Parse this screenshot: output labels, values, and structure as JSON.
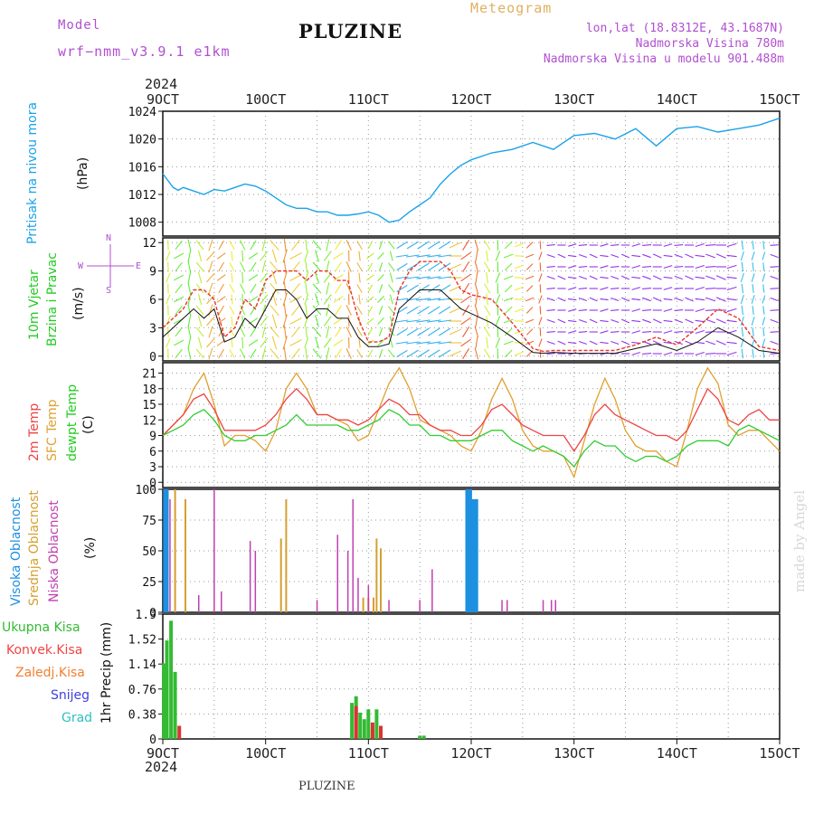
{
  "header": {
    "model_label": "Model",
    "model_name": "wrf−nmm_v3.9.1  e1km",
    "title": "PLUZINE",
    "subtitle": "Meteogram",
    "lonlat": "lon,lat (18.8312E, 43.1687N)",
    "elevation": "Nadmorska Visina 780m",
    "model_elevation": "Nadmorska Visina u modelu 901.488m",
    "year_top": "2024",
    "year_bottom": "2024",
    "footer": "PLUZINE",
    "credit": "made by Angel"
  },
  "colors": {
    "pressure": "#1aa3e8",
    "temp2m": "#ee4444",
    "sfc": "#e0a030",
    "dew": "#33cc33",
    "high_cloud": "#1e90e0",
    "mid_cloud": "#d4a030",
    "low_cloud": "#c040b0",
    "wind_line": "#e8352a",
    "precip_total": "#33bb33",
    "precip_conv": "#dd3333",
    "label_model": "#b050d0",
    "label_meteogram": "#e0b060"
  },
  "time_axis": {
    "labels": [
      "9OCT",
      "10OCT",
      "11OCT",
      "12OCT",
      "13OCT",
      "14OCT",
      "15OCT"
    ],
    "days": [
      0,
      1,
      2,
      3,
      4,
      5,
      6
    ]
  },
  "chart_data": [
    {
      "type": "line",
      "name": "pressure",
      "ylabel": "Pritisak na nivou mora",
      "unit": "(hPa)",
      "ylim": [
        1006,
        1024
      ],
      "yticks": [
        1008,
        1012,
        1016,
        1020,
        1024
      ],
      "x": [
        0,
        0.1,
        0.15,
        0.2,
        0.3,
        0.4,
        0.5,
        0.6,
        0.7,
        0.8,
        0.9,
        1.0,
        1.1,
        1.2,
        1.3,
        1.4,
        1.5,
        1.6,
        1.7,
        1.8,
        1.9,
        2.0,
        2.1,
        2.2,
        2.3,
        2.4,
        2.5,
        2.6,
        2.7,
        2.8,
        2.9,
        3.0,
        3.2,
        3.4,
        3.6,
        3.8,
        4.0,
        4.2,
        4.4,
        4.6,
        4.8,
        5.0,
        5.2,
        5.4,
        5.6,
        5.8,
        6.0
      ],
      "values": [
        1015,
        1013,
        1012.6,
        1013,
        1012.5,
        1012,
        1012.7,
        1012.5,
        1013,
        1013.5,
        1013.2,
        1012.5,
        1011.5,
        1010.5,
        1010,
        1010,
        1009.5,
        1009.5,
        1009,
        1009,
        1009.2,
        1009.5,
        1009,
        1008,
        1008.3,
        1009.5,
        1010.5,
        1011.5,
        1013.5,
        1015,
        1016.2,
        1017,
        1018,
        1018.5,
        1019.5,
        1018.5,
        1020.5,
        1020.8,
        1020,
        1021.5,
        1019,
        1021.5,
        1021.8,
        1021,
        1021.5,
        1022,
        1023
      ]
    },
    {
      "type": "line",
      "name": "wind",
      "ylabel": "10m Vjetar",
      "ylabel2": "Brzina i Pravac",
      "unit": "(m/s)",
      "compass": [
        "N",
        "W",
        "E",
        "S"
      ],
      "ylim": [
        -0.5,
        12.5
      ],
      "yticks": [
        0,
        3,
        6,
        9,
        12
      ],
      "x": [
        0,
        0.1,
        0.2,
        0.3,
        0.4,
        0.5,
        0.6,
        0.7,
        0.8,
        0.9,
        1.0,
        1.1,
        1.2,
        1.3,
        1.4,
        1.5,
        1.6,
        1.7,
        1.8,
        1.9,
        2.0,
        2.1,
        2.2,
        2.3,
        2.4,
        2.5,
        2.6,
        2.7,
        2.8,
        2.9,
        3.0,
        3.2,
        3.4,
        3.6,
        3.7,
        3.8,
        4.0,
        4.2,
        4.4,
        4.6,
        4.8,
        5.0,
        5.2,
        5.4,
        5.6,
        5.8,
        6.0
      ],
      "gust": [
        3,
        4,
        5,
        7,
        7,
        6,
        2,
        3,
        6,
        5,
        8,
        9,
        9,
        9,
        8,
        9,
        9,
        8,
        8,
        4,
        1.5,
        1.5,
        2,
        7,
        9,
        10,
        10,
        10,
        9,
        7,
        6.5,
        6,
        3.5,
        0.8,
        0.5,
        0.6,
        0.6,
        0.6,
        0.6,
        1.2,
        2,
        1.2,
        3,
        5,
        4,
        1,
        0.6
      ],
      "speed": [
        2,
        3,
        4,
        5,
        4,
        5,
        1.5,
        2,
        4,
        3,
        5,
        7,
        7,
        6,
        4,
        5,
        5,
        4,
        4,
        2,
        1,
        1,
        1.3,
        5,
        6,
        7,
        7,
        7,
        6,
        5,
        4.5,
        3.5,
        2,
        0.4,
        0.3,
        0.4,
        0.3,
        0.3,
        0.3,
        0.8,
        1.3,
        0.6,
        1.5,
        3,
        2,
        0.6,
        0.3
      ]
    },
    {
      "type": "line",
      "name": "temperature",
      "ylabel": "2m Temp",
      "ylabel2": "SFC Temp",
      "ylabel3": "dewpt Temp",
      "unit": "(C)",
      "ylim": [
        -1,
        23
      ],
      "yticks": [
        0,
        3,
        6,
        9,
        12,
        15,
        18,
        21
      ],
      "x": [
        0,
        0.1,
        0.2,
        0.3,
        0.4,
        0.5,
        0.6,
        0.7,
        0.8,
        0.9,
        1.0,
        1.1,
        1.2,
        1.3,
        1.4,
        1.5,
        1.6,
        1.7,
        1.8,
        1.9,
        2.0,
        2.1,
        2.2,
        2.3,
        2.4,
        2.5,
        2.6,
        2.7,
        2.8,
        2.9,
        3.0,
        3.1,
        3.2,
        3.3,
        3.4,
        3.5,
        3.6,
        3.7,
        3.8,
        3.9,
        4.0,
        4.1,
        4.2,
        4.3,
        4.4,
        4.5,
        4.6,
        4.7,
        4.8,
        4.9,
        5.0,
        5.1,
        5.2,
        5.3,
        5.4,
        5.5,
        5.6,
        5.7,
        5.8,
        5.9,
        6.0
      ],
      "t2m": [
        9,
        11,
        13,
        16,
        17,
        14,
        10,
        10,
        10,
        10,
        11,
        13,
        16,
        18,
        16,
        13,
        13,
        12,
        12,
        11,
        12,
        14,
        16,
        15,
        13,
        13,
        11,
        10,
        10,
        9,
        9,
        11,
        14,
        15,
        13,
        11,
        10,
        9,
        9,
        9,
        6,
        9,
        13,
        15,
        13,
        12,
        11,
        10,
        9,
        9,
        8,
        10,
        14,
        18,
        16,
        12,
        11,
        13,
        14,
        12,
        12
      ],
      "sfc": [
        9,
        11,
        13,
        18,
        21,
        15,
        7,
        9,
        9,
        8,
        6,
        10,
        18,
        21,
        18,
        13,
        13,
        12,
        11,
        8,
        9,
        14,
        19,
        22,
        18,
        12,
        11,
        10,
        9,
        7,
        6,
        10,
        16,
        20,
        16,
        10,
        7,
        6,
        6,
        5,
        1,
        8,
        15,
        20,
        16,
        10,
        7,
        6,
        6,
        4,
        3,
        10,
        18,
        22,
        19,
        11,
        9,
        10,
        10,
        8,
        6
      ],
      "dew": [
        9,
        10,
        11,
        13,
        14,
        12,
        9,
        8,
        8,
        9,
        9,
        10,
        11,
        13,
        11,
        11,
        11,
        11,
        10,
        10,
        11,
        12,
        14,
        13,
        11,
        11,
        9,
        9,
        8,
        8,
        8,
        9,
        10,
        10,
        8,
        7,
        6,
        7,
        6,
        5,
        3,
        6,
        8,
        7,
        7,
        5,
        4,
        5,
        5,
        4,
        5,
        7,
        8,
        8,
        8,
        7,
        10,
        11,
        10,
        9,
        8
      ]
    },
    {
      "type": "bar",
      "name": "cloud_cover",
      "ylabel": "Visoka Oblacnost",
      "ylabel2": "Srednja Oblacnost",
      "ylabel3": "Niska Oblacnost",
      "unit": "(%)",
      "ylim": [
        0,
        100
      ],
      "yticks": [
        0,
        25,
        50,
        75,
        100
      ],
      "high": {
        "x": [
          0.02,
          0.04,
          2.96,
          2.99,
          3.02,
          3.05
        ],
        "values": [
          100,
          100,
          100,
          100,
          92,
          92
        ]
      },
      "mid": {
        "x": [
          0.12,
          0.22,
          1.15,
          1.2,
          1.95,
          2.0,
          2.05,
          2.08,
          2.12
        ],
        "values": [
          100,
          92,
          60,
          92,
          12,
          12,
          12,
          60,
          52
        ]
      },
      "low": {
        "x": [
          0.07,
          0.35,
          0.5,
          0.57,
          0.85,
          0.9,
          1.5,
          1.7,
          1.8,
          1.85,
          1.9,
          2.0,
          2.2,
          2.5,
          2.62,
          3.3,
          3.35,
          3.7,
          3.78,
          3.82
        ],
        "values": [
          92,
          14,
          100,
          17,
          58,
          50,
          10,
          63,
          50,
          92,
          28,
          22,
          10,
          10,
          35,
          10,
          10,
          10,
          10,
          10
        ]
      }
    },
    {
      "type": "bar",
      "name": "precipitation",
      "ylabel": "1hr Precip",
      "unit": "(mm)",
      "legend": [
        "Ukupna  Kisa",
        "Konvek.Kisa",
        "Zaledj.Kisa",
        "Snijeg",
        "Grad"
      ],
      "ylim": [
        0,
        1.9
      ],
      "yticks": [
        0,
        0.38,
        0.76,
        1.14,
        1.52,
        1.9
      ],
      "total": {
        "x": [
          0.01,
          0.04,
          0.08,
          0.12,
          1.84,
          1.88,
          1.92,
          1.96,
          2.0,
          2.04,
          2.08,
          2.5,
          2.54
        ],
        "values": [
          1.15,
          1.5,
          1.8,
          1.02,
          0.55,
          0.65,
          0.4,
          0.3,
          0.45,
          0.15,
          0.45,
          0.05,
          0.05
        ]
      },
      "conv": {
        "x": [
          0.16,
          1.88,
          2.04,
          2.12
        ],
        "values": [
          0.2,
          0.5,
          0.25,
          0.2
        ]
      }
    }
  ]
}
